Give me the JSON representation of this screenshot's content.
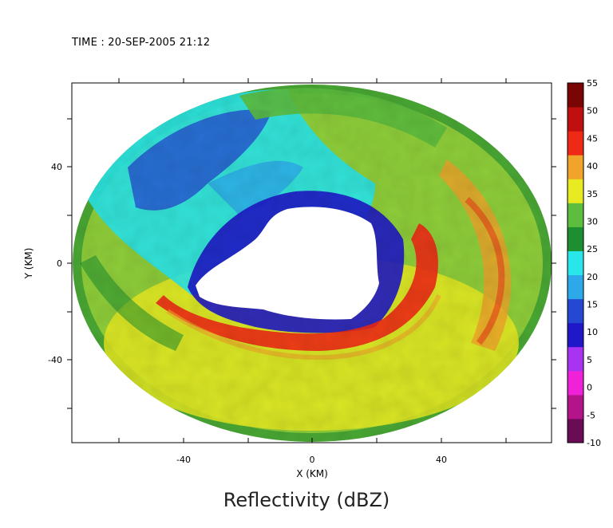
{
  "header": {
    "time_label": "TIME : 20-SEP-2005 21:12"
  },
  "footer": {
    "title": "Reflectivity (dBZ)"
  },
  "chart_data": {
    "type": "heatmap",
    "title": "Reflectivity (dBZ)",
    "subtitle": "TIME : 20-SEP-2005 21:12",
    "xlabel": "X (KM)",
    "ylabel": "Y (KM)",
    "xlim": [
      -74,
      75
    ],
    "ylim": [
      -75,
      74
    ],
    "xticks": [
      -40,
      0,
      40
    ],
    "yticks": [
      -40,
      0,
      40
    ],
    "xtick_labels": [
      "-40",
      "0",
      "40"
    ],
    "ytick_labels": [
      "-40",
      "0",
      "40"
    ],
    "minor_ticks": [
      -60,
      -20,
      20,
      60
    ],
    "colorbar": {
      "label": "dBZ",
      "min": -10,
      "max": 55,
      "tick_values": [
        -10,
        -5,
        0,
        5,
        10,
        15,
        20,
        25,
        30,
        35,
        40,
        45,
        50,
        55
      ],
      "tick_labels": [
        "-10",
        "-5",
        "0",
        "5",
        "10",
        "15",
        "20",
        "25",
        "30",
        "35",
        "40",
        "45",
        "50",
        "55"
      ],
      "colors": [
        "#6a0c55",
        "#b4148a",
        "#f022d8",
        "#a834f2",
        "#1f17c8",
        "#2548d2",
        "#2da9ea",
        "#29e6ea",
        "#1d8f30",
        "#5cbd3e",
        "#e8ea22",
        "#f0a42a",
        "#ee2a16",
        "#c00f0f",
        "#7a0505"
      ]
    },
    "radar_domain": {
      "shape": "ellipse",
      "center": [
        0,
        0
      ],
      "x_radius_km": 74,
      "y_radius_km": 74,
      "no_data_color": "#ffffff"
    },
    "features": [
      {
        "name": "eye",
        "reflectivity_dbz": null
      },
      {
        "name": "eyewall-south",
        "reflectivity_dbz": 45
      },
      {
        "name": "eyewall-east",
        "reflectivity_dbz": 45
      },
      {
        "name": "rainband-east",
        "reflectivity_dbz": 42
      },
      {
        "name": "outer-region",
        "reflectivity_dbz": 32
      },
      {
        "name": "northwest-quadrant",
        "reflectivity_dbz": 15
      },
      {
        "name": "north-arc",
        "reflectivity_dbz": 30
      }
    ]
  }
}
